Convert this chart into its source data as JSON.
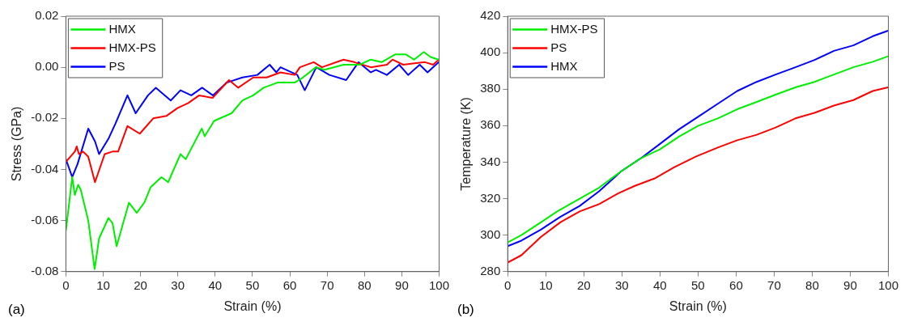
{
  "chart_data": [
    {
      "type": "line",
      "xlabel": "Strain (%)",
      "ylabel": "Stress (GPa)",
      "xlim": [
        0,
        100
      ],
      "xticks": [
        0,
        10,
        20,
        30,
        40,
        50,
        60,
        70,
        80,
        90,
        100
      ],
      "ylim": [
        -0.08,
        0.02
      ],
      "yticks": [
        -0.08,
        -0.06,
        -0.04,
        -0.02,
        {
          "value": 0,
          "label": "0.00"
        },
        0.02
      ],
      "grid": false,
      "legend": "top left",
      "marker": "none",
      "line_style": "solid",
      "annotations": [
        "(a)"
      ],
      "series": [
        {
          "name": "HMX",
          "color": "#00ee00",
          "x": [
            0,
            1.7,
            2.4,
            3.3,
            4,
            6,
            7.7,
            8.9,
            11.4,
            12.5,
            13.6,
            16.9,
            19,
            21,
            22.7,
            25.6,
            27.4,
            30.7,
            32.1,
            36.4,
            37.2,
            39.7,
            44.4,
            47.3,
            50.2,
            53,
            56.7,
            58,
            61.3,
            63.5,
            67,
            69.3,
            74.4,
            78.7,
            81.7,
            84.6,
            88.2,
            91.1,
            93.3,
            95.9,
            97.7,
            99.9
          ],
          "values": [
            -0.064,
            -0.043,
            -0.05,
            -0.046,
            -0.048,
            -0.06,
            -0.079,
            -0.067,
            -0.059,
            -0.061,
            -0.07,
            -0.053,
            -0.057,
            -0.053,
            -0.047,
            -0.043,
            -0.045,
            -0.034,
            -0.036,
            -0.024,
            -0.027,
            -0.021,
            -0.018,
            -0.013,
            -0.011,
            -0.008,
            -0.006,
            -0.006,
            -0.006,
            -0.004,
            0,
            -0.001,
            0.001,
            0.001,
            0.003,
            0.002,
            0.005,
            0.005,
            0.003,
            0.006,
            0.004,
            0.003
          ]
        },
        {
          "name": "HMX-PS",
          "color": "#ff0000",
          "x": [
            0,
            2.4,
            2.9,
            3.5,
            4.6,
            6,
            7.8,
            10.4,
            12.5,
            14,
            16.5,
            19.8,
            23.4,
            27,
            29.9,
            32.8,
            35.7,
            39.3,
            43.7,
            46.2,
            50.2,
            53.8,
            57.5,
            61.3,
            62.7,
            66.4,
            68.6,
            74.4,
            77.3,
            81.7,
            86,
            87.5,
            90.4,
            96.2,
            98.4,
            99.9
          ],
          "values": [
            -0.037,
            -0.033,
            -0.031,
            -0.034,
            -0.033,
            -0.035,
            -0.045,
            -0.034,
            -0.033,
            -0.033,
            -0.023,
            -0.026,
            -0.02,
            -0.019,
            -0.016,
            -0.014,
            -0.011,
            -0.012,
            -0.005,
            -0.008,
            -0.004,
            -0.004,
            -0.002,
            -0.003,
            0,
            0.002,
            0,
            0.003,
            0.002,
            0,
            0.001,
            0.003,
            0.001,
            0.002,
            0.001,
            0.003
          ]
        },
        {
          "name": "PS",
          "color": "#0000ff",
          "x": [
            0,
            1.7,
            3.1,
            6,
            7.8,
            8.9,
            11.4,
            13.3,
            16.5,
            18.7,
            22,
            24.1,
            28.1,
            30.7,
            33.6,
            36.5,
            39.4,
            43.1,
            47.3,
            51.3,
            54.6,
            56.4,
            57.5,
            62,
            64,
            67.1,
            70.6,
            75.1,
            78.4,
            81.7,
            83.1,
            86,
            89.3,
            91.7,
            94.8,
            96.9,
            99.9
          ],
          "values": [
            -0.036,
            -0.043,
            -0.038,
            -0.024,
            -0.029,
            -0.034,
            -0.028,
            -0.022,
            -0.011,
            -0.018,
            -0.011,
            -0.008,
            -0.013,
            -0.009,
            -0.011,
            -0.008,
            -0.011,
            -0.006,
            -0.004,
            -0.003,
            0.001,
            -0.002,
            0,
            -0.003,
            -0.009,
            0,
            -0.003,
            -0.005,
            0.002,
            -0.002,
            -0.001,
            -0.003,
            0.001,
            -0.003,
            0.001,
            -0.002,
            0.002
          ]
        }
      ]
    },
    {
      "type": "line",
      "xlabel": "Strain (%)",
      "ylabel": "Temperature (K)",
      "xlim": [
        0,
        100
      ],
      "xticks": [
        0,
        10,
        20,
        30,
        40,
        50,
        60,
        70,
        80,
        90,
        100
      ],
      "ylim": [
        280,
        420
      ],
      "yticks": [
        280,
        300,
        320,
        340,
        360,
        380,
        400,
        420
      ],
      "grid": false,
      "legend": "top left",
      "marker": "none",
      "line_style": "solid",
      "annotations": [
        "(b)"
      ],
      "series": [
        {
          "name": "HMX-PS",
          "color": "#00ee00",
          "x": [
            0,
            3.6,
            8.7,
            13,
            18.9,
            24,
            29.8,
            34.9,
            40,
            45,
            50.1,
            55.2,
            60.3,
            65.4,
            70.4,
            75.6,
            80.6,
            85.7,
            90.8,
            95.9,
            99.9
          ],
          "values": [
            296,
            300,
            307,
            313,
            320,
            326,
            335,
            342,
            347,
            354,
            360,
            364,
            369,
            373,
            377,
            381,
            384,
            388,
            392,
            395,
            398
          ]
        },
        {
          "name": "PS",
          "color": "#ff0000",
          "x": [
            0,
            3.6,
            8.7,
            13.8,
            18.9,
            24,
            29.1,
            33.4,
            38.5,
            43.6,
            49.4,
            55.2,
            60.3,
            65.4,
            70.4,
            75.6,
            80.6,
            85.7,
            90.8,
            95.9,
            99.9
          ],
          "values": [
            285,
            289,
            299,
            307,
            313,
            317,
            323,
            327,
            331,
            337,
            343,
            348,
            352,
            355,
            359,
            364,
            367,
            371,
            374,
            379,
            381
          ]
        },
        {
          "name": "HMX",
          "color": "#0000ff",
          "x": [
            0,
            3.6,
            8.7,
            13.8,
            18.9,
            24,
            29.8,
            34.9,
            40,
            45,
            50.1,
            55.2,
            60.3,
            65.4,
            70.4,
            75.6,
            80.6,
            85.7,
            90.8,
            95.9,
            99.9
          ],
          "values": [
            294,
            297,
            303,
            310,
            316,
            324,
            335,
            342,
            350,
            358,
            365,
            372,
            379,
            384,
            388,
            392,
            396,
            401,
            404,
            409,
            412
          ]
        }
      ]
    }
  ]
}
